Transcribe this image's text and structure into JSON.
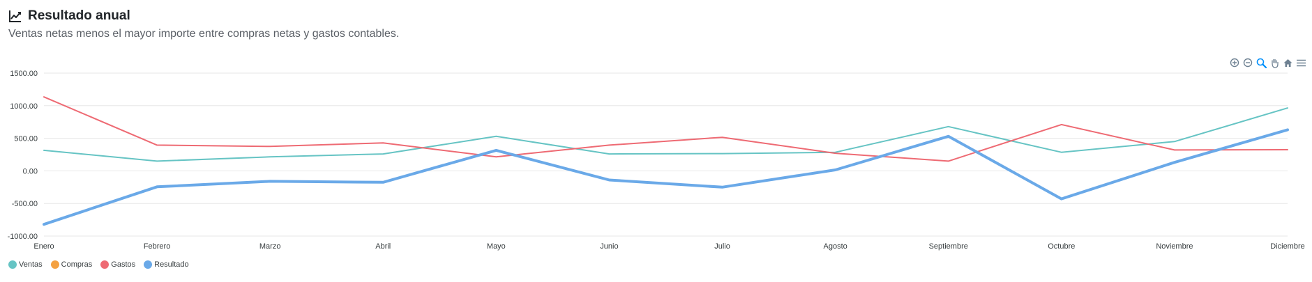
{
  "header": {
    "title": "Resultado anual",
    "subtitle": "Ventas netas menos el mayor importe entre compras netas y gastos contables.",
    "icon": "line-chart-icon"
  },
  "toolbar": {
    "icons": [
      "zoom-in-icon",
      "zoom-out-icon",
      "zoom-selection-icon",
      "pan-icon",
      "reset-home-icon",
      "menu-icon"
    ],
    "color": "#6e8192",
    "active_color": "#008ffb"
  },
  "chart_data": {
    "type": "line",
    "categories": [
      "Enero",
      "Febrero",
      "Marzo",
      "Abril",
      "Mayo",
      "Junio",
      "Julio",
      "Agosto",
      "Septiembre",
      "Octubre",
      "Noviembre",
      "Diciembre"
    ],
    "y_ticks": [
      "1500.00",
      "1000.00",
      "500.00",
      "0.00",
      "-500.00",
      "-1000.00"
    ],
    "ylim": [
      -1000,
      1500
    ],
    "grid": true,
    "legend_position": "bottom-left",
    "series": [
      {
        "name": "Ventas",
        "color": "#66c4c4",
        "values": [
          315,
          150,
          215,
          260,
          530,
          260,
          265,
          285,
          680,
          285,
          450,
          965
        ]
      },
      {
        "name": "Compras",
        "color": "#f4a142",
        "values": [
          null,
          null,
          null,
          null,
          null,
          null,
          null,
          null,
          null,
          null,
          null,
          null
        ]
      },
      {
        "name": "Gastos",
        "color": "#ee6a73",
        "values": [
          1135,
          395,
          375,
          430,
          215,
          395,
          515,
          270,
          150,
          710,
          320,
          325
        ]
      },
      {
        "name": "Resultado",
        "color": "#6aa9e8",
        "values": [
          -820,
          -245,
          -160,
          -175,
          315,
          -140,
          -250,
          15,
          530,
          -430,
          130,
          630
        ]
      }
    ]
  }
}
